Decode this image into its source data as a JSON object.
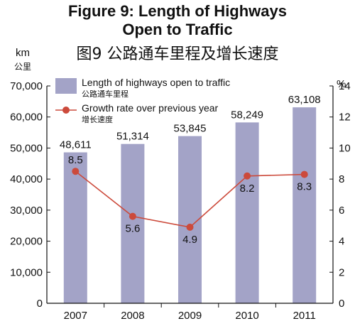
{
  "title_en_line1": "Figure 9: Length of Highways",
  "title_en_line2": "Open to Traffic",
  "title_zh": "图9  公路通车里程及增长速度",
  "left_unit_en": "km",
  "left_unit_zh": "公里",
  "right_unit": "%",
  "colors": {
    "bar": "#a3a3c7",
    "line": "#cc4a3b",
    "marker": "#cc4a3b",
    "axis": "#111111"
  },
  "chart_data": {
    "type": "bar",
    "categories": [
      "2007",
      "2008",
      "2009",
      "2010",
      "2011"
    ],
    "series": [
      {
        "name": "Length of highways open to traffic",
        "name_zh": "公路通车里程",
        "type": "bar",
        "axis": "left",
        "values": [
          48611,
          51314,
          53845,
          58249,
          63108
        ],
        "labels": [
          "48,611",
          "51,314",
          "53,845",
          "58,249",
          "63,108"
        ]
      },
      {
        "name": "Growth rate over previous year",
        "name_zh": "增长速度",
        "type": "line",
        "axis": "right",
        "values": [
          8.5,
          5.6,
          4.9,
          8.2,
          8.3
        ],
        "labels": [
          "8.5",
          "5.6",
          "4.9",
          "8.2",
          "8.3"
        ]
      }
    ],
    "ylim": [
      0,
      70000
    ],
    "y_ticks": [
      0,
      10000,
      20000,
      30000,
      40000,
      50000,
      60000,
      70000
    ],
    "y_tick_labels": [
      "0",
      "10,000",
      "20,000",
      "30,000",
      "40,000",
      "50,000",
      "60,000",
      "70,000"
    ],
    "y2lim": [
      0,
      14
    ],
    "y2_ticks": [
      0,
      2,
      4,
      6,
      8,
      10,
      12,
      14
    ],
    "y2_tick_labels": [
      "0",
      "2",
      "4",
      "6",
      "8",
      "10",
      "12",
      "14"
    ],
    "grid": false,
    "legend": "top-left"
  }
}
